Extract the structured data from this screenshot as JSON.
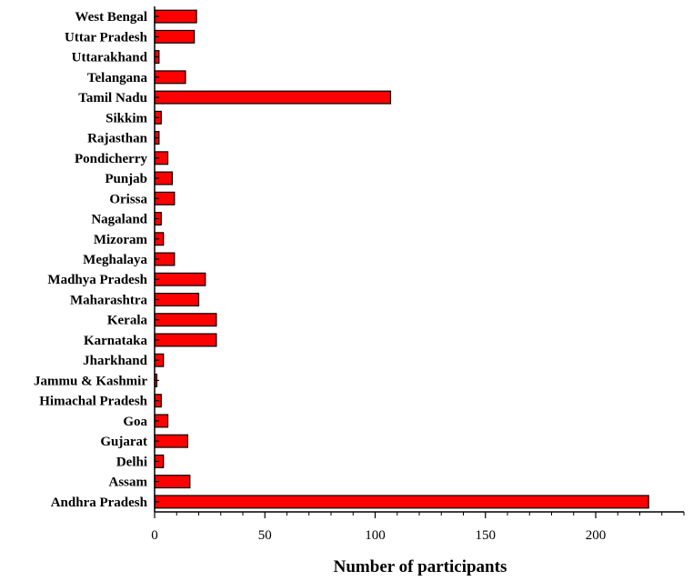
{
  "chart_data": {
    "type": "bar",
    "orientation": "horizontal",
    "categories": [
      "Andhra Pradesh",
      "Assam",
      "Delhi",
      "Gujarat",
      "Goa",
      "Himachal Pradesh",
      "Jammu & Kashmir",
      "Jharkhand",
      "Karnataka",
      "Kerala",
      "Maharashtra",
      "Madhya Pradesh",
      "Meghalaya",
      "Mizoram",
      "Nagaland",
      "Orissa",
      "Punjab",
      "Pondicherry",
      "Rajasthan",
      "Sikkim",
      "Tamil Nadu",
      "Telangana",
      "Uttarakhand",
      "Uttar Pradesh",
      "West Bengal"
    ],
    "values": [
      224,
      16,
      4,
      15,
      6,
      3,
      1,
      4,
      28,
      28,
      20,
      23,
      9,
      4,
      3,
      9,
      8,
      6,
      2,
      3,
      107,
      14,
      2,
      18,
      19
    ],
    "xlabel": "Number of participants",
    "ylabel": "",
    "xlim": [
      0,
      240
    ],
    "xticks": [
      0,
      50,
      100,
      150,
      200
    ],
    "bar_color": "#ff0000",
    "grid": false
  }
}
